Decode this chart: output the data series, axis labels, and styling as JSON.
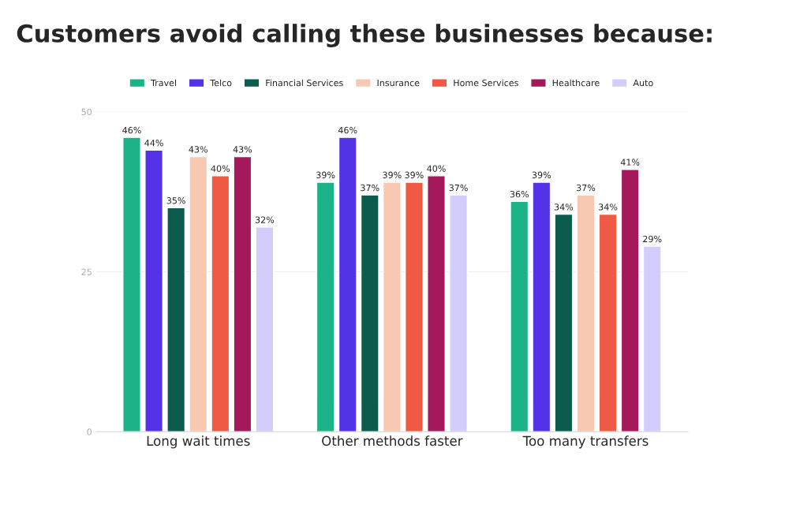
{
  "chart_data": {
    "type": "bar",
    "title": "Customers avoid calling these businesses because:",
    "categories": [
      "Long wait times",
      "Other methods faster",
      "Too many transfers"
    ],
    "series": [
      {
        "name": "Travel",
        "color": "#1db389",
        "values": [
          46,
          39,
          36
        ],
        "value_labels": [
          "46%",
          "39%",
          "36%"
        ]
      },
      {
        "name": "Telco",
        "color": "#5433e6",
        "values": [
          44,
          46,
          39
        ],
        "value_labels": [
          "44%",
          "46%",
          "39%"
        ]
      },
      {
        "name": "Financial Services",
        "color": "#0b5c4d",
        "values": [
          35,
          37,
          34
        ],
        "value_labels": [
          "35%",
          "37%",
          "34%"
        ]
      },
      {
        "name": "Insurance",
        "color": "#f7c9b2",
        "values": [
          43,
          39,
          37
        ],
        "value_labels": [
          "43%",
          "39%",
          "37%"
        ]
      },
      {
        "name": "Home Services",
        "color": "#ef5a45",
        "values": [
          40,
          39,
          34
        ],
        "value_labels": [
          "40%",
          "39%",
          "34%"
        ]
      },
      {
        "name": "Healthcare",
        "color": "#a3195b",
        "values": [
          43,
          40,
          41
        ],
        "value_labels": [
          "43%",
          "40%",
          "41%"
        ]
      },
      {
        "name": "Auto",
        "color": "#d3cdfb",
        "values": [
          32,
          37,
          29
        ],
        "value_labels": [
          "32%",
          "37%",
          "29%"
        ]
      }
    ],
    "ylim": [
      0,
      50
    ],
    "yticks": [
      0,
      25,
      50
    ],
    "grid": "y",
    "legend": "top"
  }
}
